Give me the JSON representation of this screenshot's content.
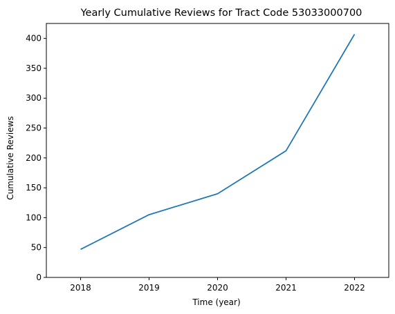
{
  "chart_data": {
    "type": "line",
    "title": "Yearly Cumulative Reviews for Tract Code 53033000700",
    "xlabel": "Time (year)",
    "ylabel": "Cumulative Reviews",
    "x": [
      "2018",
      "2019",
      "2020",
      "2021",
      "2022"
    ],
    "series": [
      {
        "values": [
          47,
          105,
          140,
          212,
          407
        ],
        "color": "#1f77b4"
      }
    ],
    "xlim": [
      2017.5,
      2022.5
    ],
    "ylim": [
      0,
      425
    ],
    "yticks": [
      0,
      50,
      100,
      150,
      200,
      250,
      300,
      350,
      400
    ],
    "grid": false,
    "legend": "none"
  }
}
